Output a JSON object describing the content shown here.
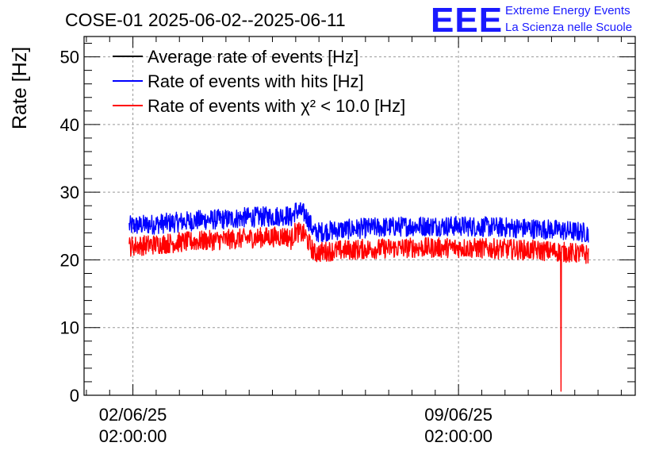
{
  "chart_data": {
    "type": "line",
    "title": "COSE-01 2025-06-02--2025-06-11",
    "ylabel": "Rate [Hz]",
    "xlabel": "",
    "ylim": [
      0,
      53
    ],
    "yticks": [
      0,
      10,
      20,
      30,
      40,
      50
    ],
    "x_tick_labels": [
      {
        "day": 0,
        "line1": "02/06/25",
        "line2": "02:00:00"
      },
      {
        "day": 7,
        "line1": "09/06/25",
        "line2": "02:00:00"
      }
    ],
    "xlim_days": [
      -1.05,
      10.8
    ],
    "grid": true,
    "legend_position": "top-left",
    "series": [
      {
        "name": "Average rate of events [Hz]",
        "color": "#000000",
        "points": []
      },
      {
        "name": "Rate of events with hits [Hz]",
        "color": "#0000ff",
        "points": [
          [
            -0.08,
            25.0
          ],
          [
            0.5,
            25.3
          ],
          [
            1.0,
            25.6
          ],
          [
            1.5,
            25.9
          ],
          [
            2.0,
            26.0
          ],
          [
            2.5,
            26.3
          ],
          [
            3.0,
            26.4
          ],
          [
            3.3,
            26.6
          ],
          [
            3.4,
            26.2
          ],
          [
            3.5,
            27.3
          ],
          [
            3.7,
            26.8
          ],
          [
            3.78,
            25.8
          ],
          [
            3.9,
            24.0
          ],
          [
            4.2,
            24.3
          ],
          [
            5.0,
            24.7
          ],
          [
            6.0,
            25.0
          ],
          [
            7.0,
            25.0
          ],
          [
            8.0,
            24.8
          ],
          [
            9.0,
            24.5
          ],
          [
            9.8,
            24.0
          ]
        ],
        "noise": 1.5
      },
      {
        "name": "Rate of events with χ² < 10.0 [Hz]",
        "color": "#ff0000",
        "points": [
          [
            -0.08,
            22.0
          ],
          [
            0.5,
            22.3
          ],
          [
            1.0,
            22.6
          ],
          [
            1.5,
            22.8
          ],
          [
            2.0,
            23.0
          ],
          [
            2.5,
            23.2
          ],
          [
            3.0,
            23.4
          ],
          [
            3.3,
            23.5
          ],
          [
            3.4,
            23.0
          ],
          [
            3.5,
            24.2
          ],
          [
            3.7,
            23.7
          ],
          [
            3.78,
            22.5
          ],
          [
            3.9,
            21.0
          ],
          [
            4.2,
            21.3
          ],
          [
            5.0,
            21.6
          ],
          [
            6.0,
            21.8
          ],
          [
            7.0,
            21.8
          ],
          [
            8.0,
            21.6
          ],
          [
            9.0,
            21.3
          ],
          [
            9.8,
            20.8
          ]
        ],
        "noise": 1.5,
        "dropout": {
          "day": 9.2,
          "min": 0.6
        }
      }
    ]
  },
  "logo": {
    "letters": "EEE",
    "line1": "Extreme Energy Events",
    "line2": "La Scienza nelle Scuole"
  }
}
